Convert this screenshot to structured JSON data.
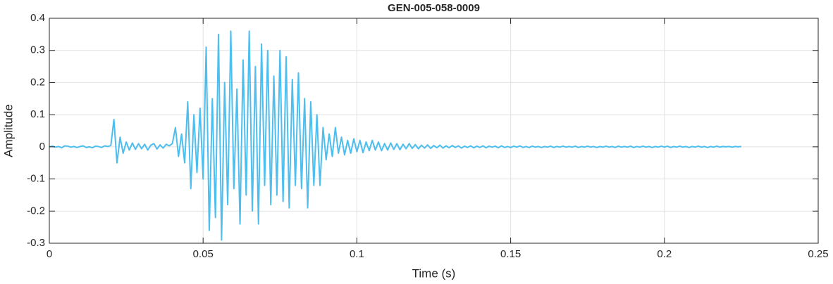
{
  "chart_data": {
    "type": "line",
    "title": "GEN-005-058-0009",
    "xlabel": "Time (s)",
    "ylabel": "Amplitude",
    "xlim": [
      0,
      0.25
    ],
    "ylim": [
      -0.3,
      0.4
    ],
    "xticks": [
      0,
      0.05,
      0.1,
      0.15,
      0.2,
      0.25
    ],
    "yticks": [
      -0.3,
      -0.2,
      -0.1,
      0,
      0.1,
      0.2,
      0.3,
      0.4
    ],
    "grid": true,
    "x": [
      0,
      0.001,
      0.002,
      0.003,
      0.004,
      0.005,
      0.006,
      0.007,
      0.008,
      0.009,
      0.01,
      0.011,
      0.012,
      0.013,
      0.014,
      0.015,
      0.016,
      0.017,
      0.018,
      0.019,
      0.02,
      0.021,
      0.022,
      0.023,
      0.024,
      0.025,
      0.026,
      0.027,
      0.028,
      0.029,
      0.03,
      0.031,
      0.032,
      0.033,
      0.034,
      0.035,
      0.036,
      0.037,
      0.038,
      0.039,
      0.04,
      0.041,
      0.042,
      0.043,
      0.044,
      0.045,
      0.046,
      0.047,
      0.048,
      0.049,
      0.05,
      0.051,
      0.052,
      0.053,
      0.054,
      0.055,
      0.056,
      0.057,
      0.058,
      0.059,
      0.06,
      0.061,
      0.062,
      0.063,
      0.064,
      0.065,
      0.066,
      0.067,
      0.068,
      0.069,
      0.07,
      0.071,
      0.072,
      0.073,
      0.074,
      0.075,
      0.076,
      0.077,
      0.078,
      0.079,
      0.08,
      0.081,
      0.082,
      0.083,
      0.084,
      0.085,
      0.086,
      0.087,
      0.088,
      0.089,
      0.09,
      0.091,
      0.092,
      0.093,
      0.094,
      0.095,
      0.096,
      0.097,
      0.098,
      0.099,
      0.1,
      0.101,
      0.102,
      0.103,
      0.104,
      0.105,
      0.106,
      0.107,
      0.108,
      0.109,
      0.11,
      0.111,
      0.112,
      0.113,
      0.114,
      0.115,
      0.116,
      0.117,
      0.118,
      0.119,
      0.12,
      0.121,
      0.122,
      0.123,
      0.124,
      0.125,
      0.126,
      0.127,
      0.128,
      0.129,
      0.13,
      0.131,
      0.132,
      0.133,
      0.134,
      0.135,
      0.136,
      0.137,
      0.138,
      0.139,
      0.14,
      0.141,
      0.142,
      0.143,
      0.144,
      0.145,
      0.146,
      0.147,
      0.148,
      0.149,
      0.15,
      0.151,
      0.152,
      0.153,
      0.154,
      0.155,
      0.156,
      0.157,
      0.158,
      0.159,
      0.16,
      0.161,
      0.162,
      0.163,
      0.164,
      0.165,
      0.166,
      0.167,
      0.168,
      0.169,
      0.17,
      0.171,
      0.172,
      0.173,
      0.174,
      0.175,
      0.176,
      0.177,
      0.178,
      0.179,
      0.18,
      0.181,
      0.182,
      0.183,
      0.184,
      0.185,
      0.186,
      0.187,
      0.188,
      0.189,
      0.19,
      0.191,
      0.192,
      0.193,
      0.194,
      0.195,
      0.196,
      0.197,
      0.198,
      0.199,
      0.2,
      0.201,
      0.202,
      0.203,
      0.204,
      0.205,
      0.206,
      0.207,
      0.208,
      0.209,
      0.21,
      0.211,
      0.212,
      0.213,
      0.214,
      0.215,
      0.216,
      0.217,
      0.218,
      0.219,
      0.22,
      0.221,
      0.222,
      0.223,
      0.224,
      0.225
    ],
    "values": [
      0,
      0.002,
      -0.001,
      0.001,
      -0.003,
      0.003,
      0.002,
      -0.001,
      0.001,
      -0.002,
      0.001,
      0.003,
      -0.002,
      0,
      -0.003,
      0.002,
      0.001,
      -0.002,
      0.003,
      0.001,
      0.004,
      0.085,
      -0.05,
      0.03,
      -0.02,
      0.015,
      -0.01,
      0.012,
      -0.008,
      0.01,
      -0.006,
      0.008,
      -0.01,
      0.005,
      0.01,
      -0.007,
      0.006,
      -0.004,
      0.008,
      0.003,
      0.01,
      0.06,
      -0.03,
      0.04,
      -0.05,
      0.14,
      -0.13,
      0.1,
      -0.08,
      0.12,
      -0.1,
      0.31,
      -0.26,
      0.15,
      -0.22,
      0.35,
      -0.29,
      0.2,
      -0.18,
      0.36,
      -0.13,
      0.18,
      -0.24,
      0.27,
      -0.15,
      0.36,
      -0.2,
      0.25,
      -0.24,
      0.32,
      -0.12,
      0.3,
      -0.18,
      0.22,
      -0.15,
      0.3,
      -0.17,
      0.28,
      -0.19,
      0.21,
      -0.12,
      0.23,
      -0.13,
      0.15,
      -0.19,
      0.14,
      -0.12,
      0.1,
      -0.12,
      0.06,
      -0.04,
      0.04,
      -0.03,
      0.06,
      -0.02,
      0.03,
      -0.025,
      0.02,
      -0.02,
      0.025,
      -0.015,
      0.02,
      -0.018,
      0.015,
      -0.012,
      0.02,
      -0.01,
      0.015,
      -0.012,
      0.01,
      -0.01,
      0.012,
      -0.008,
      0.01,
      -0.009,
      0.008,
      -0.006,
      0.01,
      -0.005,
      0.007,
      -0.006,
      0.005,
      -0.004,
      0.006,
      -0.005,
      0.004,
      -0.003,
      0.005,
      -0.004,
      0.003,
      -0.003,
      0.004,
      -0.002,
      0.003,
      -0.004,
      0.002,
      -0.002,
      0.003,
      -0.003,
      0.002,
      -0.002,
      0.003,
      -0.003,
      0.002,
      -0.001,
      0.002,
      -0.003,
      0.003,
      -0.002,
      0.001,
      -0.002,
      0.002,
      -0.001,
      0.003,
      -0.002,
      0.001,
      -0.002,
      0.002,
      -0.001,
      0.001,
      -0.002,
      0.001,
      -0.001,
      0.002,
      -0.002,
      0.001,
      -0.001,
      0.002,
      -0.001,
      0.001,
      -0.001,
      0.002,
      -0.002,
      0.001,
      -0.001,
      0.002,
      -0.001,
      0.001,
      -0.002,
      0.001,
      -0.001,
      0.002,
      -0.001,
      0.001,
      -0.002,
      0.002,
      -0.001,
      0.001,
      -0.001,
      0.002,
      -0.002,
      0.001,
      -0.001,
      0.002,
      -0.001,
      0.001,
      -0.002,
      0.001,
      -0.001,
      0.002,
      -0.001,
      0.002,
      -0.002,
      0.001,
      -0.001,
      0.002,
      -0.001,
      0.001,
      -0.002,
      0.001,
      -0.001,
      0.002,
      -0.001,
      0.001,
      -0.002,
      0.001,
      -0.001,
      0.002,
      -0.001,
      0.001,
      0,
      0.001,
      -0.001,
      0.001,
      0,
      0.001
    ],
    "color": "#4dbeee"
  }
}
